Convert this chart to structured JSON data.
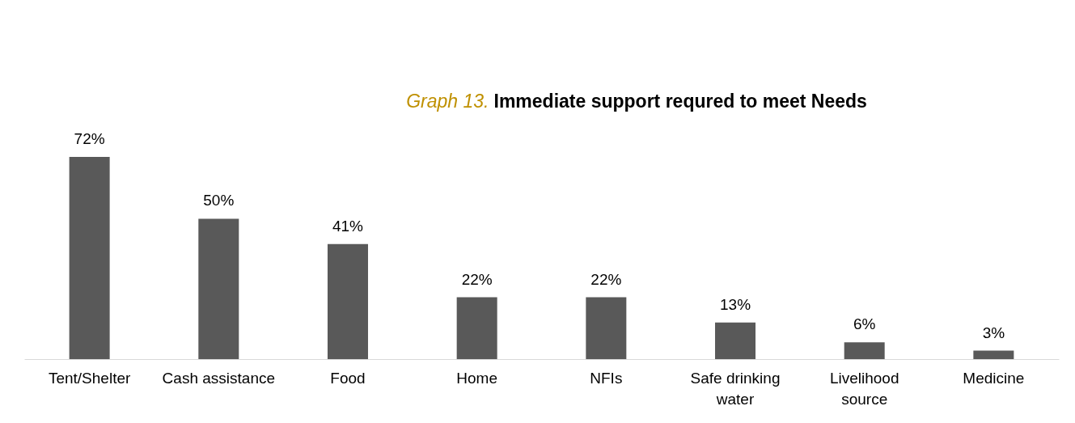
{
  "chart_data": {
    "type": "bar",
    "title": "Graph 13. Immediate support requred to meet Needs",
    "categories": [
      "Tent/Shelter",
      "Cash assistance",
      "Food",
      "Home",
      "NFIs",
      "Safe drinking water",
      "Livelihood source",
      "Medicine"
    ],
    "values": [
      72,
      50,
      41,
      22,
      22,
      13,
      6,
      3
    ],
    "value_labels": [
      "72%",
      "50%",
      "41%",
      "22%",
      "22%",
      "13%",
      "6%",
      "3%"
    ],
    "color": "#595959"
  }
}
